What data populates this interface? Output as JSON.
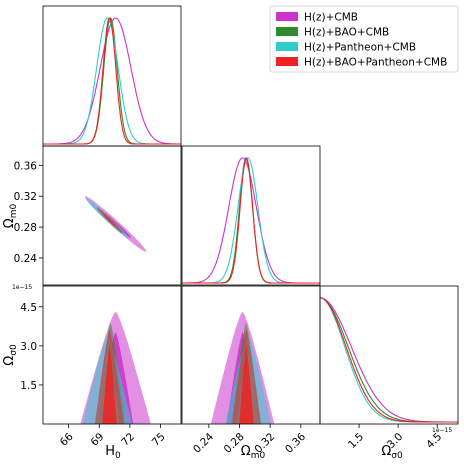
{
  "legend": {
    "placement": "top-right",
    "items": [
      {
        "label": "H(z)+CMB",
        "color": "#cc33cc"
      },
      {
        "label": "H(z)+BAO+CMB",
        "color": "#2e8b2e"
      },
      {
        "label": "H(z)+Pantheon+CMB",
        "color": "#33cccc"
      },
      {
        "label": "H(z)+BAO+Pantheon+CMB",
        "color": "#ee2222"
      }
    ]
  },
  "labels": {
    "h0": "H",
    "h0_sub": "0",
    "om": "Ω",
    "om_sub": "m0",
    "os": "Ω",
    "os_sub": "σ0",
    "offset": "1e−15"
  },
  "chart_data": {
    "type": "corner",
    "parameters": [
      "H0",
      "Ωm0",
      "Ωσ0"
    ],
    "axes": {
      "H0": {
        "range": [
          63.5,
          77.0
        ],
        "ticks": [
          66,
          69,
          72,
          75
        ],
        "tick_labels": [
          "66",
          "69",
          "72",
          "75"
        ]
      },
      "Om": {
        "range": [
          0.205,
          0.385
        ],
        "ticks": [
          0.24,
          0.28,
          0.32,
          0.36
        ],
        "tick_labels": [
          "0.24",
          "0.28",
          "0.32",
          "0.36"
        ]
      },
      "Os": {
        "range": [
          0.0,
          5.3
        ],
        "ticks": [
          1.5,
          3.0,
          4.5
        ],
        "tick_labels": [
          "1.5",
          "3.0",
          "4.5"
        ],
        "scale": "1e-15"
      }
    },
    "series": [
      {
        "name": "H(z)+CMB",
        "color": "#cc33cc",
        "H0": {
          "mean": 70.6,
          "sigma": 1.5
        },
        "Om": {
          "mean": 0.284,
          "sigma": 0.018
        },
        "corr_H0_Om": -0.985,
        "Os_width": 1.2
      },
      {
        "name": "H(z)+BAO+CMB",
        "color": "#2e8b2e",
        "H0": {
          "mean": 70.1,
          "sigma": 0.65
        },
        "Om": {
          "mean": 0.2885,
          "sigma": 0.0085
        },
        "corr_H0_Om": -0.985,
        "Os_width": 1.08
      },
      {
        "name": "H(z)+Pantheon+CMB",
        "color": "#33cccc",
        "H0": {
          "mean": 69.8,
          "sigma": 1.05
        },
        "Om": {
          "mean": 0.291,
          "sigma": 0.013
        },
        "corr_H0_Om": -0.985,
        "Os_width": 0.95
      },
      {
        "name": "H(z)+BAO+Pantheon+CMB",
        "color": "#ee2222",
        "H0": {
          "mean": 70.0,
          "sigma": 0.62
        },
        "Om": {
          "mean": 0.289,
          "sigma": 0.0082
        },
        "corr_H0_Om": -0.985,
        "Os_width": 1.0
      }
    ]
  }
}
